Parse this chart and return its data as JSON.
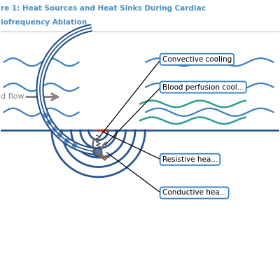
{
  "bg_color": "#ffffff",
  "title_color": "#4a90c4",
  "blue_dark": "#1e4d8c",
  "blue_mid": "#3a7fc1",
  "teal": "#2a9d8f",
  "gray_arrow": "#8a8080",
  "brown": "#7a6255",
  "red_mark": "#c0392b",
  "label_edge": "#3a7fc1",
  "title_line1": "re 1: Heat Sources and Heat Sinks During Cardiac",
  "title_line2": "iofrequency Ablation",
  "label_convective": "Convective cooling",
  "label_blood": "Blood perfusion cool...",
  "label_resistive": "Resistive hea...",
  "label_conductive": "Conductive hea...",
  "flow_text": "d flow"
}
